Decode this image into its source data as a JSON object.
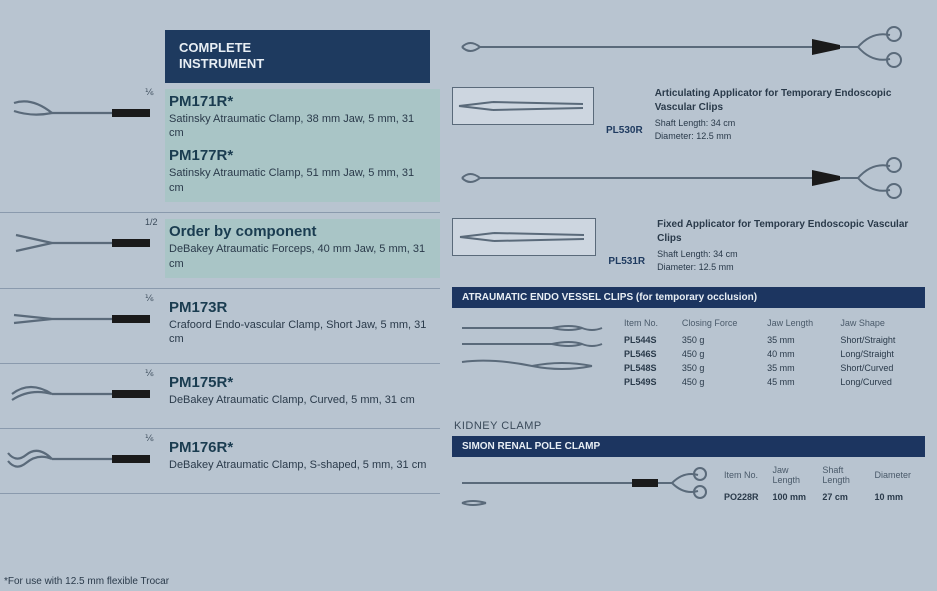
{
  "colors": {
    "page_bg": "#b8c4d0",
    "bar_bg": "#1e3a5f",
    "bar_bg2": "#1c3560",
    "bar_fg": "#e8eef4",
    "text_primary": "#1a3c50",
    "text_body": "#2a3a4a",
    "rule": "#8a9aad",
    "highlight_bg": "rgba(140,200,180,0.35)",
    "metal": "#6a7a8a",
    "black_handle": "#1a1a1a"
  },
  "left": {
    "header_line1": "COMPLETE",
    "header_line2": "INSTRUMENT",
    "rows": [
      {
        "num": "⅙",
        "highlight": true,
        "items": [
          {
            "code": "PM171R*",
            "desc": "Satinsky Atraumatic Clamp, 38 mm Jaw, 5 mm, 31 cm"
          },
          {
            "code": "PM177R*",
            "desc": "Satinsky Atraumatic Clamp, 51 mm Jaw, 5 mm, 31 cm"
          }
        ],
        "shape": "satinsky"
      },
      {
        "num": "1/2",
        "highlight": true,
        "items": [
          {
            "code": "Order by component",
            "desc": "DeBakey Atraumatic Forceps, 40 mm Jaw, 5 mm, 31 cm"
          }
        ],
        "shape": "forceps"
      },
      {
        "num": "⅙",
        "highlight": false,
        "items": [
          {
            "code": "PM173R",
            "desc": "Crafoord Endo-vascular Clamp, Short Jaw, 5 mm, 31 cm"
          }
        ],
        "shape": "straight"
      },
      {
        "num": "⅙",
        "highlight": false,
        "items": [
          {
            "code": "PM175R*",
            "desc": "DeBakey Atraumatic Clamp, Curved, 5 mm, 31 cm"
          }
        ],
        "shape": "curved"
      },
      {
        "num": "⅙",
        "highlight": false,
        "items": [
          {
            "code": "PM176R*",
            "desc": "DeBakey Atraumatic Clamp, S-shaped, 5 mm, 31 cm"
          }
        ],
        "shape": "s-shape"
      }
    ]
  },
  "right": {
    "applicators": [
      {
        "code": "PL530R",
        "title": "Articulating Applicator for Temporary Endoscopic Vascular Clips",
        "lines": [
          "Shaft Length:   34 cm",
          "Diameter:       12.5 mm"
        ]
      },
      {
        "code": "PL531R",
        "title": "Fixed Applicator for Temporary Endoscopic Vascular Clips",
        "lines": [
          "Shaft Length:   34 cm",
          "Diameter:       12.5 mm"
        ]
      }
    ],
    "clips_header": "ATRAUMATIC ENDO VESSEL CLIPS (for temporary occlusion)",
    "clips_columns": [
      "Item No.",
      "Closing Force",
      "Jaw Length",
      "Jaw Shape"
    ],
    "clips_rows": [
      [
        "PL544S",
        "350 g",
        "35 mm",
        "Short/Straight"
      ],
      [
        "PL546S",
        "450 g",
        "40 mm",
        "Long/Straight"
      ],
      [
        "PL548S",
        "350 g",
        "35 mm",
        "Short/Curved"
      ],
      [
        "PL549S",
        "450 g",
        "45 mm",
        "Long/Curved"
      ]
    ],
    "kidney_label": "KIDNEY CLAMP",
    "kidney_bar": "SIMON RENAL POLE CLAMP",
    "kidney_columns": [
      "Item No.",
      "Jaw Length",
      "Shaft Length",
      "Diameter"
    ],
    "kidney_row": [
      "PO228R",
      "100 mm",
      "27 cm",
      "10 mm"
    ]
  },
  "footnote": "*For use with 12.5 mm flexible Trocar"
}
